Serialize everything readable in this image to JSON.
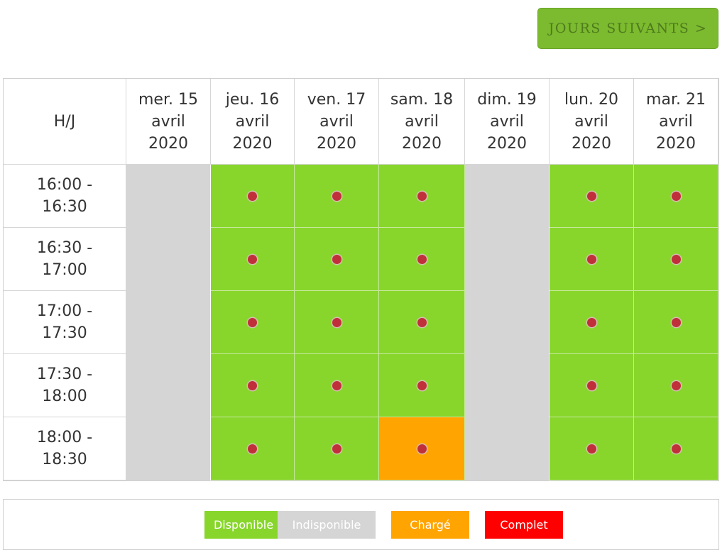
{
  "next_button_label": "JOURS SUIVANTS >",
  "corner_label": "H/J",
  "days": [
    {
      "label": "mer. 15\navril\n2020",
      "status": "unavailable"
    },
    {
      "label": "jeu. 16\navril\n2020",
      "status": "open"
    },
    {
      "label": "ven. 17\navril\n2020",
      "status": "open"
    },
    {
      "label": "sam. 18\navril\n2020",
      "status": "open"
    },
    {
      "label": "dim. 19\navril\n2020",
      "status": "unavailable"
    },
    {
      "label": "lun. 20\navril\n2020",
      "status": "open"
    },
    {
      "label": "mar. 21\navril\n2020",
      "status": "open"
    }
  ],
  "time_slots": [
    "16:00 -\n16:30",
    "16:30 -\n17:00",
    "17:00 -\n17:30",
    "17:30 -\n18:00",
    "18:00 -\n18:30"
  ],
  "slot_states": [
    [
      null,
      "available",
      "available",
      "available",
      null,
      "available",
      "available"
    ],
    [
      null,
      "available",
      "available",
      "available",
      null,
      "available",
      "available"
    ],
    [
      null,
      "available",
      "available",
      "available",
      null,
      "available",
      "available"
    ],
    [
      null,
      "available",
      "available",
      "available",
      null,
      "available",
      "available"
    ],
    [
      null,
      "available",
      "available",
      "loaded",
      null,
      "available",
      "available"
    ]
  ],
  "colors": {
    "available": "#88d62c",
    "unavailable": "#d5d5d5",
    "loaded": "#ffa400",
    "full": "#ff0000",
    "dot": "#c0303a",
    "button": "#7cba2f"
  },
  "legend": [
    {
      "label": "Disponible",
      "color": "#88d62c"
    },
    {
      "label": "Indisponible",
      "color": "#d5d5d5"
    },
    {
      "label": "Chargé",
      "color": "#ffa400"
    },
    {
      "label": "Complet",
      "color": "#ff0000"
    }
  ]
}
